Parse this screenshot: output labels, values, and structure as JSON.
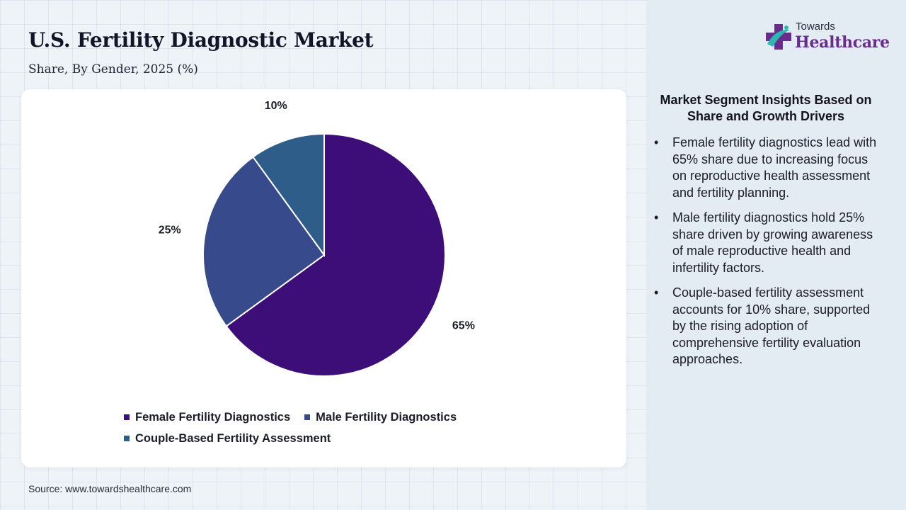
{
  "header": {
    "title": "U.S. Fertility Diagnostic Market",
    "subtitle": "Share, By Gender, 2025 (%)"
  },
  "chart_data": {
    "type": "pie",
    "categories": [
      "Female Fertility Diagnostics",
      "Male Fertility Diagnostics",
      "Couple-Based Fertility Assessment"
    ],
    "values": [
      65,
      25,
      10
    ],
    "value_labels": [
      "65%",
      "25%",
      "10%"
    ],
    "colors": [
      "#3d0e78",
      "#374a8c",
      "#2f5d8a"
    ],
    "legend_placement": "bottom",
    "start_angle": "12 o'clock",
    "direction": "clockwise"
  },
  "logo": {
    "top_text": "Towards",
    "main_text": "Healthcare",
    "icon": "medical-cross-icon"
  },
  "insights": {
    "title": "Market Segment Insights Based on Share and Growth Drivers",
    "bullets": [
      "Female fertility diagnostics lead with 65% share due to increasing focus on reproductive health assessment and fertility planning.",
      "Male fertility diagnostics hold 25% share driven by growing awareness of male reproductive health and infertility factors.",
      "Couple-based fertility assessment accounts for 10% share, supported by the rising adoption of comprehensive fertility evaluation approaches."
    ]
  },
  "footer": {
    "source": "Source: www.towardshealthcare.com"
  }
}
